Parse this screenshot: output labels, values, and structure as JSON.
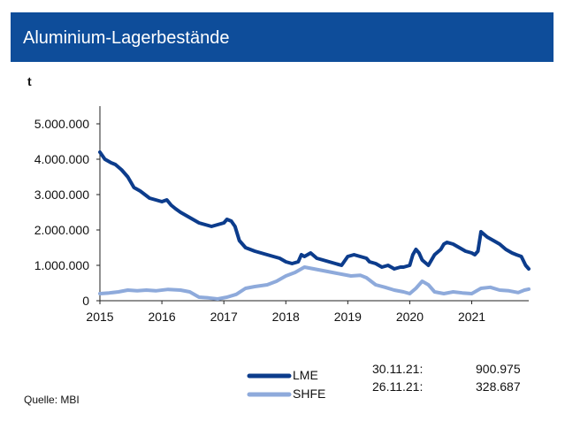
{
  "header": {
    "title": "Aluminium-Lagerbestände"
  },
  "unit_label": "t",
  "source": "Quelle: MBI",
  "legend": [
    {
      "name": "LME",
      "date": "30.11.21:",
      "value": "900.975",
      "color": "#0c3c8c"
    },
    {
      "name": "SHFE",
      "date": "26.11.21:",
      "value": "328.687",
      "color": "#8eaadb"
    }
  ],
  "chart_data": {
    "type": "line",
    "title": "Aluminium-Lagerbestände",
    "ylabel": "t",
    "xlabel": "",
    "xlim": [
      2015,
      2021.92
    ],
    "ylim": [
      0,
      5500000
    ],
    "y_ticks": [
      0,
      1000000,
      2000000,
      3000000,
      4000000,
      5000000
    ],
    "y_tick_labels": [
      "0",
      "1.000.000",
      "2.000.000",
      "3.000.000",
      "4.000.000",
      "5.000.000"
    ],
    "x_ticks": [
      2015,
      2016,
      2017,
      2018,
      2019,
      2020,
      2021
    ],
    "x_tick_labels": [
      "2015",
      "2016",
      "2017",
      "2018",
      "2019",
      "2020",
      "2021"
    ],
    "series": [
      {
        "name": "LME",
        "color": "#0c3c8c",
        "x": [
          2015.0,
          2015.08,
          2015.18,
          2015.25,
          2015.35,
          2015.45,
          2015.55,
          2015.65,
          2015.8,
          2015.9,
          2016.0,
          2016.08,
          2016.15,
          2016.22,
          2016.3,
          2016.4,
          2016.5,
          2016.6,
          2016.7,
          2016.8,
          2016.9,
          2017.0,
          2017.05,
          2017.12,
          2017.18,
          2017.25,
          2017.35,
          2017.5,
          2017.6,
          2017.7,
          2017.8,
          2017.9,
          2018.0,
          2018.1,
          2018.2,
          2018.25,
          2018.3,
          2018.4,
          2018.5,
          2018.6,
          2018.7,
          2018.8,
          2018.9,
          2019.0,
          2019.1,
          2019.2,
          2019.3,
          2019.35,
          2019.45,
          2019.55,
          2019.65,
          2019.75,
          2019.85,
          2019.9,
          2020.0,
          2020.05,
          2020.1,
          2020.15,
          2020.2,
          2020.3,
          2020.4,
          2020.5,
          2020.55,
          2020.6,
          2020.7,
          2020.8,
          2020.9,
          2021.0,
          2021.05,
          2021.1,
          2021.15,
          2021.25,
          2021.35,
          2021.45,
          2021.55,
          2021.65,
          2021.72,
          2021.8,
          2021.87,
          2021.92
        ],
        "values": [
          4200000,
          4000000,
          3900000,
          3850000,
          3700000,
          3500000,
          3200000,
          3100000,
          2900000,
          2850000,
          2800000,
          2850000,
          2700000,
          2600000,
          2500000,
          2400000,
          2300000,
          2200000,
          2150000,
          2100000,
          2150000,
          2200000,
          2300000,
          2250000,
          2100000,
          1700000,
          1500000,
          1400000,
          1350000,
          1300000,
          1250000,
          1200000,
          1100000,
          1050000,
          1100000,
          1300000,
          1250000,
          1350000,
          1200000,
          1150000,
          1100000,
          1050000,
          1000000,
          1250000,
          1300000,
          1250000,
          1200000,
          1100000,
          1050000,
          950000,
          1000000,
          900000,
          950000,
          950000,
          1000000,
          1300000,
          1450000,
          1350000,
          1150000,
          1000000,
          1300000,
          1450000,
          1600000,
          1650000,
          1600000,
          1500000,
          1400000,
          1350000,
          1300000,
          1400000,
          1950000,
          1800000,
          1700000,
          1600000,
          1450000,
          1350000,
          1300000,
          1250000,
          1000000,
          900975
        ]
      },
      {
        "name": "SHFE",
        "color": "#8eaadb",
        "x": [
          2015.0,
          2015.15,
          2015.3,
          2015.45,
          2015.6,
          2015.75,
          2015.9,
          2016.1,
          2016.3,
          2016.45,
          2016.6,
          2016.75,
          2016.9,
          2017.05,
          2017.2,
          2017.35,
          2017.5,
          2017.7,
          2017.85,
          2018.0,
          2018.15,
          2018.3,
          2018.45,
          2018.6,
          2018.75,
          2018.9,
          2019.05,
          2019.2,
          2019.3,
          2019.45,
          2019.6,
          2019.75,
          2019.9,
          2020.0,
          2020.1,
          2020.2,
          2020.3,
          2020.4,
          2020.55,
          2020.7,
          2020.85,
          2021.0,
          2021.15,
          2021.3,
          2021.45,
          2021.6,
          2021.75,
          2021.85,
          2021.92
        ],
        "values": [
          200000,
          220000,
          250000,
          300000,
          280000,
          300000,
          280000,
          320000,
          300000,
          250000,
          100000,
          80000,
          50000,
          100000,
          180000,
          350000,
          400000,
          450000,
          550000,
          700000,
          800000,
          950000,
          900000,
          850000,
          800000,
          750000,
          700000,
          720000,
          650000,
          450000,
          380000,
          300000,
          250000,
          200000,
          350000,
          550000,
          450000,
          250000,
          200000,
          250000,
          220000,
          200000,
          350000,
          380000,
          300000,
          280000,
          230000,
          300000,
          328687
        ]
      }
    ]
  }
}
